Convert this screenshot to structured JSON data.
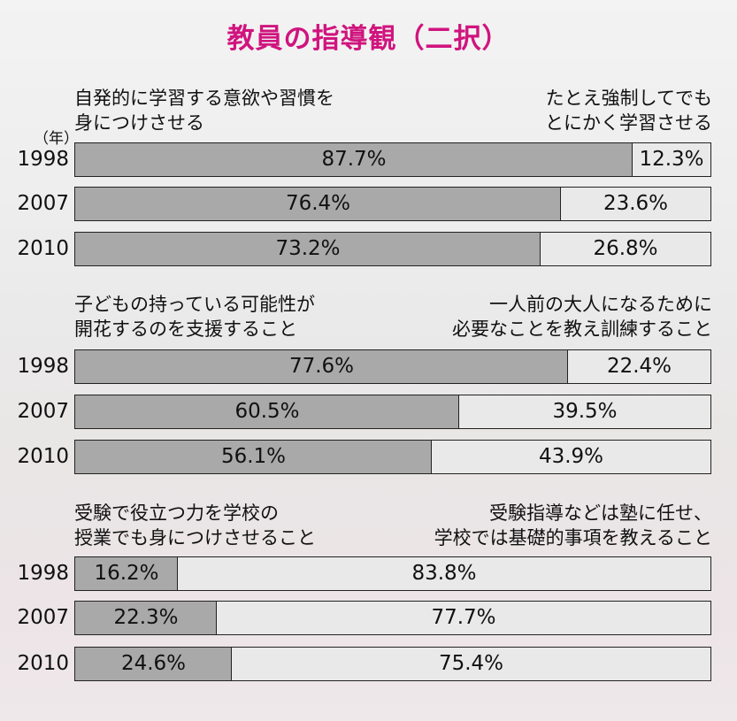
{
  "title": "教員の指導観（二択）",
  "unit_label": "（年）",
  "chart_data": [
    {
      "type": "bar",
      "stacked": true,
      "orientation": "horizontal",
      "left_label": "自発的に学習する意欲や習慣を\n身につけさせる",
      "right_label": "たとえ強制してでも\nとにかく学習させる",
      "categories": [
        "1998",
        "2007",
        "2010"
      ],
      "series": [
        {
          "values": [
            87.7,
            76.4,
            73.2
          ],
          "labels": [
            "87.7%",
            "76.4%",
            "73.2%"
          ]
        },
        {
          "values": [
            12.3,
            23.6,
            26.8
          ],
          "labels": [
            "12.3%",
            "23.6%",
            "26.8%"
          ]
        }
      ],
      "xlim": [
        0,
        100
      ]
    },
    {
      "type": "bar",
      "stacked": true,
      "orientation": "horizontal",
      "left_label": "子どもの持っている可能性が\n開花するのを支援すること",
      "right_label": "一人前の大人になるために\n必要なことを教え訓練すること",
      "categories": [
        "1998",
        "2007",
        "2010"
      ],
      "series": [
        {
          "values": [
            77.6,
            60.5,
            56.1
          ],
          "labels": [
            "77.6%",
            "60.5%",
            "56.1%"
          ]
        },
        {
          "values": [
            22.4,
            39.5,
            43.9
          ],
          "labels": [
            "22.4%",
            "39.5%",
            "43.9%"
          ]
        }
      ],
      "xlim": [
        0,
        100
      ]
    },
    {
      "type": "bar",
      "stacked": true,
      "orientation": "horizontal",
      "left_label": "受験で役立つ力を学校の\n授業でも身につけさせること",
      "right_label": "受験指導などは塾に任せ、\n学校では基礎的事項を教えること",
      "categories": [
        "1998",
        "2007",
        "2010"
      ],
      "series": [
        {
          "values": [
            16.2,
            22.3,
            24.6
          ],
          "labels": [
            "16.2%",
            "22.3%",
            "24.6%"
          ]
        },
        {
          "values": [
            83.8,
            77.7,
            75.4
          ],
          "labels": [
            "83.8%",
            "77.7%",
            "75.4%"
          ]
        }
      ],
      "xlim": [
        0,
        100
      ]
    }
  ],
  "colors": {
    "title": "#d0147e",
    "series_a": "#a9a9a9",
    "series_b": "#e9e9e9"
  }
}
